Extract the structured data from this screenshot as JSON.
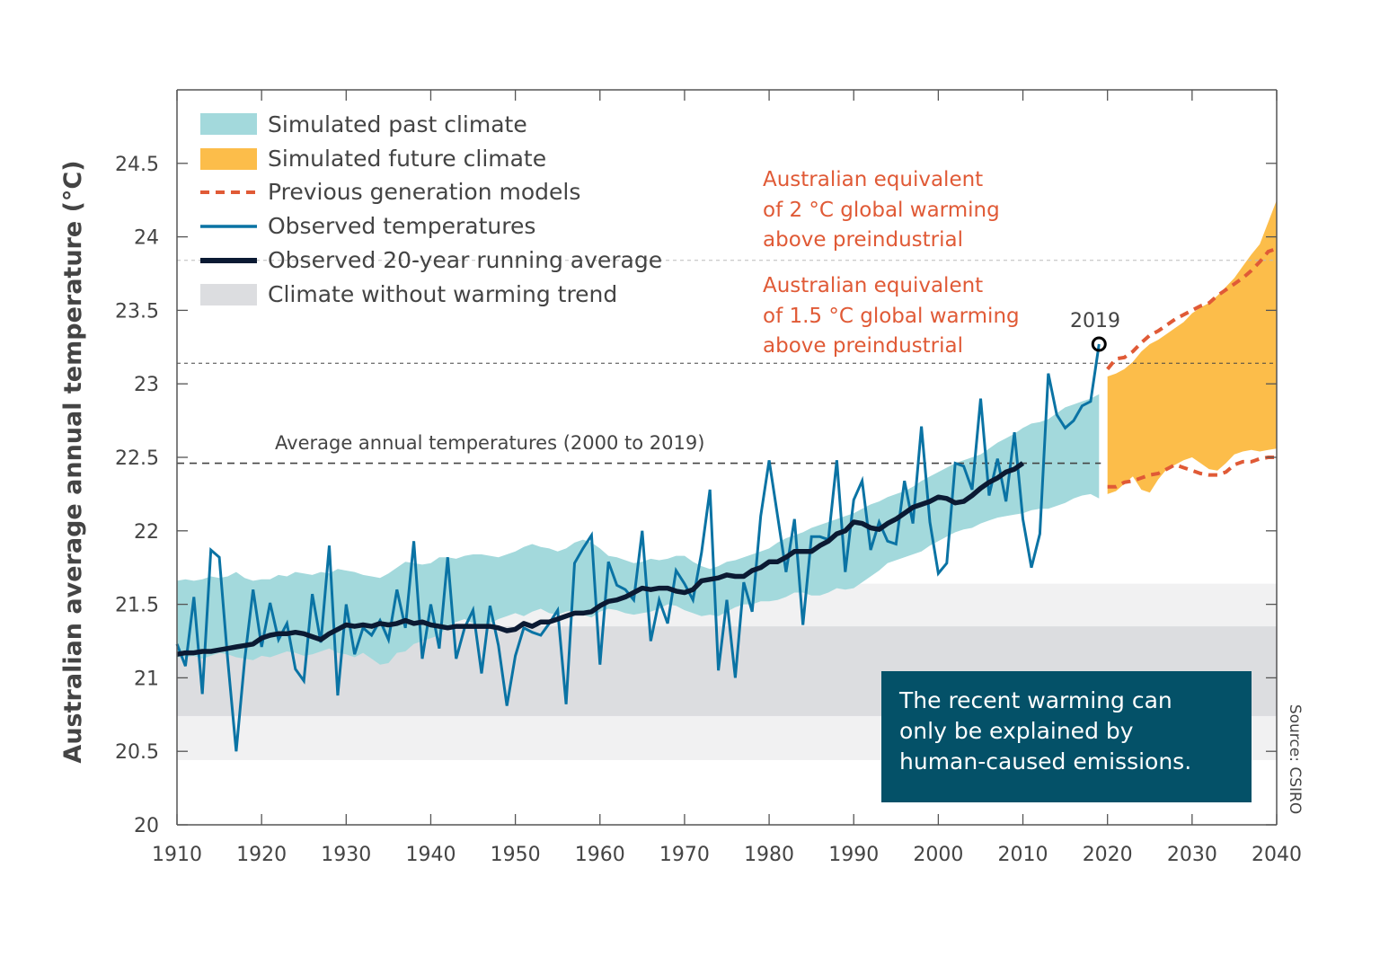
{
  "chart_data": {
    "type": "line",
    "ylabel": "Australian average annual temperature (°C)",
    "xlabel": "",
    "xlim": [
      1910,
      2040
    ],
    "ylim": [
      20,
      24.9
    ],
    "x_ticks": [
      1910,
      1920,
      1930,
      1940,
      1950,
      1960,
      1970,
      1980,
      1990,
      2000,
      2010,
      2020,
      2030,
      2040
    ],
    "y_ticks": [
      20,
      20.5,
      21,
      21.5,
      22,
      22.5,
      23,
      23.5,
      24,
      24.5
    ],
    "y_tick_labels": [
      "20",
      "20.5",
      "21",
      "21.5",
      "22",
      "22.5",
      "23",
      "23.5",
      "24",
      "24.5"
    ],
    "legend": {
      "placement": "top-left",
      "entries": [
        {
          "label": "Simulated past climate",
          "kind": "band",
          "color": "#a3d9dc"
        },
        {
          "label": "Simulated future climate",
          "kind": "band",
          "color": "#fcbd4a"
        },
        {
          "label": "Previous generation models",
          "kind": "dashed-line",
          "color": "#e05a36"
        },
        {
          "label": "Observed temperatures",
          "kind": "line",
          "color": "#0a73a4"
        },
        {
          "label": "Observed 20-year running average",
          "kind": "thick-line",
          "color": "#0b1a33"
        },
        {
          "label": "Climate without warming trend",
          "kind": "band",
          "color": "#dcdde0"
        }
      ]
    },
    "observed": {
      "name": "Observed temperatures",
      "start_year": 1910,
      "values": [
        21.23,
        21.08,
        21.55,
        20.89,
        21.87,
        21.82,
        21.12,
        20.5,
        21.12,
        21.6,
        21.21,
        21.51,
        21.26,
        21.37,
        21.06,
        20.98,
        21.57,
        21.24,
        21.9,
        20.88,
        21.5,
        21.16,
        21.34,
        21.29,
        21.39,
        21.26,
        21.6,
        21.34,
        21.93,
        21.13,
        21.5,
        21.2,
        21.82,
        21.13,
        21.34,
        21.46,
        21.03,
        21.49,
        21.22,
        20.81,
        21.15,
        21.34,
        21.31,
        21.29,
        21.37,
        21.46,
        20.82,
        21.78,
        21.88,
        21.97,
        21.09,
        21.79,
        21.63,
        21.6,
        21.53,
        22.0,
        21.25,
        21.53,
        21.37,
        21.73,
        21.64,
        21.53,
        21.85,
        22.28,
        21.05,
        21.53,
        21.0,
        21.65,
        21.45,
        22.1,
        22.48,
        22.1,
        21.72,
        22.08,
        21.36,
        21.96,
        21.96,
        21.94,
        22.48,
        21.72,
        22.21,
        22.34,
        21.87,
        22.06,
        21.93,
        21.91,
        22.34,
        22.05,
        22.71,
        22.06,
        21.71,
        21.78,
        22.46,
        22.44,
        22.28,
        22.9,
        22.24,
        22.49,
        22.2,
        22.67,
        22.08,
        21.75,
        21.98,
        23.07,
        22.79,
        22.7,
        22.75,
        22.85,
        22.88,
        23.27
      ]
    },
    "running_average": {
      "name": "Observed 20-year running average",
      "start_year": 1910,
      "values": [
        21.16,
        21.17,
        21.17,
        21.18,
        21.18,
        21.19,
        21.2,
        21.21,
        21.22,
        21.23,
        21.27,
        21.29,
        21.3,
        21.3,
        21.31,
        21.3,
        21.28,
        21.26,
        21.3,
        21.33,
        21.36,
        21.35,
        21.36,
        21.35,
        21.37,
        21.36,
        21.37,
        21.39,
        21.37,
        21.38,
        21.36,
        21.35,
        21.34,
        21.35,
        21.35,
        21.35,
        21.35,
        21.35,
        21.34,
        21.32,
        21.33,
        21.37,
        21.35,
        21.38,
        21.38,
        21.4,
        21.42,
        21.44,
        21.44,
        21.45,
        21.49,
        21.52,
        21.53,
        21.55,
        21.58,
        21.61,
        21.6,
        21.61,
        21.61,
        21.59,
        21.58,
        21.6,
        21.66,
        21.67,
        21.68,
        21.7,
        21.69,
        21.69,
        21.73,
        21.75,
        21.79,
        21.79,
        21.82,
        21.86,
        21.86,
        21.86,
        21.9,
        21.93,
        21.98,
        22.0,
        22.06,
        22.05,
        22.02,
        22.01,
        22.05,
        22.08,
        22.12,
        22.16,
        22.18,
        22.2,
        22.23,
        22.22,
        22.19,
        22.2,
        22.24,
        22.29,
        22.33,
        22.36,
        22.4,
        22.42,
        22.46
      ]
    },
    "simulated_past": {
      "name": "Simulated past climate",
      "start_year": 1910,
      "upper": [
        21.66,
        21.67,
        21.66,
        21.67,
        21.69,
        21.68,
        21.69,
        21.72,
        21.68,
        21.66,
        21.67,
        21.67,
        21.7,
        21.69,
        21.72,
        21.71,
        21.7,
        21.72,
        21.71,
        21.74,
        21.73,
        21.72,
        21.7,
        21.69,
        21.68,
        21.71,
        21.75,
        21.79,
        21.78,
        21.77,
        21.78,
        21.82,
        21.82,
        21.81,
        21.83,
        21.84,
        21.84,
        21.83,
        21.82,
        21.84,
        21.86,
        21.89,
        21.91,
        21.89,
        21.88,
        21.86,
        21.88,
        21.92,
        21.94,
        21.92,
        21.88,
        21.83,
        21.82,
        21.8,
        21.78,
        21.79,
        21.81,
        21.8,
        21.81,
        21.83,
        21.83,
        21.79,
        21.76,
        21.74,
        21.76,
        21.79,
        21.8,
        21.82,
        21.84,
        21.86,
        21.88,
        21.92,
        21.95,
        21.97,
        21.99,
        22.02,
        22.04,
        22.06,
        22.08,
        22.1,
        22.12,
        22.15,
        22.18,
        22.2,
        22.23,
        22.25,
        22.27,
        22.3,
        22.34,
        22.37,
        22.4,
        22.43,
        22.46,
        22.48,
        22.5,
        22.52,
        22.56,
        22.6,
        22.63,
        22.66,
        22.7,
        22.73,
        22.74,
        22.76,
        22.8,
        22.84,
        22.86,
        22.88,
        22.9,
        22.93
      ],
      "lower": [
        21.14,
        21.14,
        21.15,
        21.13,
        21.15,
        21.17,
        21.16,
        21.14,
        21.13,
        21.12,
        21.15,
        21.14,
        21.16,
        21.18,
        21.17,
        21.15,
        21.16,
        21.18,
        21.2,
        21.17,
        21.16,
        21.14,
        21.17,
        21.13,
        21.09,
        21.1,
        21.17,
        21.18,
        21.23,
        21.25,
        21.27,
        21.29,
        21.35,
        21.38,
        21.4,
        21.37,
        21.34,
        21.37,
        21.4,
        21.42,
        21.44,
        21.42,
        21.45,
        21.47,
        21.44,
        21.43,
        21.45,
        21.46,
        21.43,
        21.41,
        21.45,
        21.47,
        21.46,
        21.44,
        21.43,
        21.44,
        21.45,
        21.47,
        21.5,
        21.49,
        21.46,
        21.44,
        21.42,
        21.43,
        21.42,
        21.45,
        21.48,
        21.5,
        21.5,
        21.52,
        21.52,
        21.53,
        21.55,
        21.58,
        21.58,
        21.56,
        21.56,
        21.58,
        21.61,
        21.6,
        21.61,
        21.65,
        21.69,
        21.73,
        21.78,
        21.8,
        21.82,
        21.84,
        21.86,
        21.9,
        21.93,
        21.96,
        21.99,
        22.01,
        22.02,
        22.05,
        22.07,
        22.09,
        22.1,
        22.11,
        22.12,
        22.14,
        22.15,
        22.15,
        22.17,
        22.19,
        22.22,
        22.24,
        22.25,
        22.22
      ]
    },
    "simulated_future": {
      "name": "Simulated future climate",
      "start_year": 2020,
      "upper": [
        23.05,
        23.07,
        23.1,
        23.15,
        23.22,
        23.27,
        23.3,
        23.34,
        23.38,
        23.42,
        23.48,
        23.52,
        23.55,
        23.6,
        23.66,
        23.72,
        23.8,
        23.88,
        23.95,
        24.1,
        24.25
      ],
      "lower": [
        22.25,
        22.27,
        22.32,
        22.37,
        22.28,
        22.26,
        22.35,
        22.42,
        22.45,
        22.48,
        22.5,
        22.46,
        22.42,
        22.41,
        22.46,
        22.52,
        22.54,
        22.55,
        22.54,
        22.55,
        22.56
      ]
    },
    "previous_generation_models": {
      "name": "Previous generation models",
      "start_year": 2020,
      "upper": [
        23.1,
        23.17,
        23.18,
        23.22,
        23.28,
        23.33,
        23.36,
        23.4,
        23.44,
        23.47,
        23.5,
        23.53,
        23.55,
        23.6,
        23.64,
        23.68,
        23.72,
        23.77,
        23.83,
        23.9,
        23.92
      ],
      "lower": [
        22.3,
        22.3,
        22.33,
        22.34,
        22.36,
        22.38,
        22.39,
        22.42,
        22.45,
        22.43,
        22.41,
        22.39,
        22.38,
        22.38,
        22.4,
        22.45,
        22.47,
        22.47,
        22.49,
        22.5,
        22.5
      ]
    },
    "no_trend_band": {
      "name": "Climate without warming trend",
      "inner": [
        20.74,
        21.35
      ],
      "outer": [
        20.44,
        21.64
      ]
    },
    "reference_lines": [
      {
        "name": "Average annual temperatures (2000 to 2019)",
        "value": 22.46,
        "label": "Average annual temperatures (2000 to 2019)",
        "x_end": 2019
      },
      {
        "name": "1.5 °C global warming equivalent",
        "value": 23.14
      },
      {
        "name": "2 °C global warming equivalent",
        "value": 23.84
      }
    ],
    "annotations": {
      "warming_2c": [
        "Australian equivalent",
        "of 2 °C global warming",
        "above preindustrial"
      ],
      "warming_1_5c": [
        "Australian equivalent",
        "of 1.5 °C global warming",
        "above preindustrial"
      ],
      "marker_2019": {
        "label": "2019",
        "year": 2019,
        "value": 23.27
      },
      "callout": [
        "The recent warming can",
        "only be explained by",
        "human-caused emissions."
      ],
      "source": "Source: CSIRO"
    },
    "colors": {
      "sim_past": "#a3d9dc",
      "sim_future": "#fcbd4a",
      "prev_models": "#e05a36",
      "observed": "#0a73a4",
      "running_avg": "#0b1a33",
      "no_trend_inner": "#dcdde0",
      "no_trend_outer": "#f1f1f2",
      "callout_bg": "#045168"
    }
  }
}
